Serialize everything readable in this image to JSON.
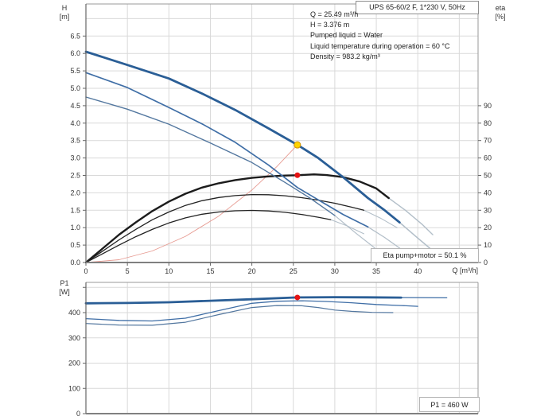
{
  "page": {
    "background": "#ffffff"
  },
  "labels": {
    "h_axis_line1": "H",
    "h_axis_line2": "[m]",
    "eta_axis_line1": "eta",
    "eta_axis_line2": "[%]",
    "p1_axis_line1": "P1",
    "p1_axis_line2": "[W]"
  },
  "chart_data": [
    {
      "type": "line",
      "title": "UPS 65-60/2 F, 1*230 V, 50Hz",
      "x_axis": {
        "label": "Q [m³/h]",
        "min": 0,
        "max": 47.3,
        "ticks": [
          0,
          5,
          10,
          15,
          20,
          25,
          30,
          35,
          40
        ],
        "grid": [
          5,
          10,
          15,
          20,
          25,
          30,
          35,
          40,
          45
        ]
      },
      "y_left": {
        "label": "H [m]",
        "min": 0,
        "max": 7.4,
        "ticks": [
          0.0,
          0.5,
          1.0,
          1.5,
          2.0,
          2.5,
          3.0,
          3.5,
          4.0,
          4.5,
          5.0,
          5.5,
          6.0,
          6.5
        ]
      },
      "y_right": {
        "label": "eta [%]",
        "min": 0,
        "max": 148,
        "ticks": [
          0,
          10,
          20,
          30,
          40,
          50,
          60,
          70,
          80,
          90
        ]
      },
      "annotations": [
        "Q = 25.49 m³/h",
        "H = 3.376 m",
        "Pumped liquid = Water",
        "Liquid temperature during operation = 60 °C",
        "Density = 983.2 kg/m³"
      ],
      "point_label": "Eta pump+motor = 50.1 %",
      "operating_point": {
        "q": 25.49,
        "h": 3.376,
        "eta_pct": 50.1
      },
      "series": [
        {
          "name": "system-curve",
          "axis": "H",
          "color": "#e79b92",
          "width": 0.9,
          "points": [
            [
              0,
              0
            ],
            [
              4,
              0.08
            ],
            [
              8,
              0.33
            ],
            [
              12,
              0.75
            ],
            [
              16,
              1.33
            ],
            [
              20,
              2.08
            ],
            [
              23,
              2.75
            ],
            [
              25.49,
              3.376
            ]
          ]
        },
        {
          "name": "qh-speed3-extension",
          "axis": "H",
          "color": "#b3bfc9",
          "width": 1.6,
          "points": [
            [
              37.8,
              1.15
            ],
            [
              40,
              0.7
            ],
            [
              42,
              0.3
            ]
          ]
        },
        {
          "name": "qh-speed2-extension",
          "axis": "H",
          "color": "#b3bfc9",
          "width": 1.3,
          "points": [
            [
              34,
              1.02
            ],
            [
              36,
              0.72
            ],
            [
              38.3,
              0.33
            ]
          ]
        },
        {
          "name": "qh-speed1-extension",
          "axis": "H",
          "color": "#b3bfc9",
          "width": 1.2,
          "points": [
            [
              30,
              1.35
            ],
            [
              32.5,
              0.85
            ],
            [
              34.8,
              0.42
            ]
          ]
        },
        {
          "name": "eta-speed3-extension",
          "axis": "eta",
          "color": "#b3bfc9",
          "width": 1.4,
          "points": [
            [
              36.5,
              37
            ],
            [
              38.5,
              30
            ],
            [
              40.5,
              22
            ],
            [
              41.8,
              16
            ]
          ]
        },
        {
          "name": "eta-speed2-extension",
          "axis": "eta",
          "color": "#b3bfc9",
          "width": 1.1,
          "points": [
            [
              33.5,
              30
            ],
            [
              35.5,
              25.5
            ],
            [
              37.5,
              20
            ]
          ]
        },
        {
          "name": "eta-speed1-extension",
          "axis": "eta",
          "color": "#b3bfc9",
          "width": 1.1,
          "points": [
            [
              29.5,
              24.6
            ],
            [
              31.5,
              21
            ],
            [
              33.5,
              16.5
            ]
          ]
        },
        {
          "name": "eta-pump-motor-speed3",
          "axis": "eta",
          "color": "#1c1c1c",
          "width": 2.4,
          "points": [
            [
              0,
              0
            ],
            [
              2,
              8
            ],
            [
              4,
              16
            ],
            [
              6,
              23
            ],
            [
              8,
              29.5
            ],
            [
              10,
              35
            ],
            [
              12,
              39.5
            ],
            [
              14,
              43
            ],
            [
              16,
              45.5
            ],
            [
              18,
              47.3
            ],
            [
              20,
              48.6
            ],
            [
              22,
              49.4
            ],
            [
              24,
              49.9
            ],
            [
              25.49,
              50.1
            ],
            [
              27.5,
              50.6
            ],
            [
              29,
              50.2
            ],
            [
              31,
              49
            ],
            [
              33,
              46.5
            ],
            [
              35,
              42.5
            ],
            [
              36.5,
              37
            ]
          ]
        },
        {
          "name": "eta-pump-motor-speed2",
          "axis": "eta",
          "color": "#222222",
          "width": 1.3,
          "points": [
            [
              0,
              0
            ],
            [
              2,
              6.5
            ],
            [
              4,
              13
            ],
            [
              6,
              19
            ],
            [
              8,
              24.5
            ],
            [
              10,
              29
            ],
            [
              12,
              32.8
            ],
            [
              14,
              35.5
            ],
            [
              16,
              37.3
            ],
            [
              18,
              38.4
            ],
            [
              20,
              39
            ],
            [
              22,
              38.9
            ],
            [
              24,
              38.3
            ],
            [
              26,
              37.2
            ],
            [
              28,
              35.8
            ],
            [
              30,
              34
            ],
            [
              32,
              31.8
            ],
            [
              33.5,
              30
            ]
          ]
        },
        {
          "name": "eta-pump-motor-speed1",
          "axis": "eta",
          "color": "#222222",
          "width": 1.3,
          "points": [
            [
              0,
              0
            ],
            [
              2,
              5
            ],
            [
              4,
              10
            ],
            [
              6,
              14.8
            ],
            [
              8,
              19
            ],
            [
              10,
              22.7
            ],
            [
              12,
              25.6
            ],
            [
              14,
              27.7
            ],
            [
              16,
              29
            ],
            [
              18,
              29.7
            ],
            [
              20,
              29.9
            ],
            [
              22,
              29.6
            ],
            [
              24,
              28.8
            ],
            [
              26,
              27.6
            ],
            [
              28,
              26
            ],
            [
              29.5,
              24.6
            ]
          ]
        },
        {
          "name": "qh-speed1",
          "axis": "H",
          "color": "#53779f",
          "width": 1.4,
          "points": [
            [
              0,
              4.75
            ],
            [
              5,
              4.4
            ],
            [
              10,
              3.97
            ],
            [
              15,
              3.43
            ],
            [
              20,
              2.87
            ],
            [
              24,
              2.3
            ],
            [
              27,
              1.85
            ],
            [
              30,
              1.35
            ]
          ]
        },
        {
          "name": "qh-speed2",
          "axis": "H",
          "color": "#3f6ea6",
          "width": 1.7,
          "points": [
            [
              0,
              5.45
            ],
            [
              5,
              5.02
            ],
            [
              10,
              4.45
            ],
            [
              14,
              3.98
            ],
            [
              18,
              3.45
            ],
            [
              22,
              2.8
            ],
            [
              25.5,
              2.15
            ],
            [
              28,
              1.8
            ],
            [
              31,
              1.38
            ],
            [
              34,
              1.02
            ]
          ]
        },
        {
          "name": "qh-speed3",
          "axis": "H",
          "color": "#2a5e96",
          "width": 2.8,
          "points": [
            [
              0,
              6.05
            ],
            [
              5,
              5.67
            ],
            [
              10,
              5.28
            ],
            [
              14,
              4.85
            ],
            [
              18,
              4.38
            ],
            [
              22,
              3.85
            ],
            [
              25.49,
              3.376
            ],
            [
              28,
              3.0
            ],
            [
              31,
              2.45
            ],
            [
              34,
              1.85
            ],
            [
              36,
              1.5
            ],
            [
              37.8,
              1.15
            ]
          ]
        }
      ],
      "markers": [
        {
          "name": "duty-point-qh",
          "q": 25.49,
          "value": 3.376,
          "axis": "H",
          "fill": "#ffd400",
          "stroke": "#d09000",
          "r": 4
        },
        {
          "name": "duty-point-eta",
          "q": 25.49,
          "value": 50.1,
          "axis": "eta",
          "fill": "#e51414",
          "stroke": "none",
          "r": 3.5
        }
      ]
    },
    {
      "type": "line",
      "y_left": {
        "label": "P1 [W]",
        "min": 0,
        "max": 520,
        "ticks": [
          0,
          100,
          200,
          300,
          400
        ],
        "grid": [
          100,
          200,
          300,
          400,
          500
        ]
      },
      "x_grid": [
        5,
        10,
        15,
        20,
        25,
        30,
        35,
        40,
        45
      ],
      "point_label": "P1 = 460 W",
      "operating_point": {
        "q": 25.49,
        "p1_w": 460
      },
      "series": [
        {
          "name": "p1-speed3-extension",
          "axis": "P",
          "color": "#3f6ea6",
          "width": 1.2,
          "points": [
            [
              38,
              459.5
            ],
            [
              43.5,
              458.5
            ]
          ]
        },
        {
          "name": "p1-speed1",
          "axis": "P",
          "color": "#53779f",
          "width": 1.2,
          "points": [
            [
              0,
              357
            ],
            [
              4,
              351
            ],
            [
              8,
              350
            ],
            [
              12,
              362
            ],
            [
              16,
              392
            ],
            [
              20,
              420
            ],
            [
              23,
              428
            ],
            [
              26,
              427
            ],
            [
              28,
              420
            ],
            [
              30,
              410
            ],
            [
              32,
              405
            ],
            [
              34.5,
              401
            ],
            [
              37,
              400
            ]
          ]
        },
        {
          "name": "p1-speed2",
          "axis": "P",
          "color": "#3f6ea6",
          "width": 1.3,
          "points": [
            [
              0,
              376
            ],
            [
              4,
              369
            ],
            [
              8,
              367
            ],
            [
              12,
              378
            ],
            [
              16,
              408
            ],
            [
              20,
              437
            ],
            [
              23,
              445
            ],
            [
              26,
              447
            ],
            [
              29,
              444
            ],
            [
              32,
              439
            ],
            [
              35,
              432
            ],
            [
              38,
              428
            ],
            [
              40,
              425
            ]
          ]
        },
        {
          "name": "p1-speed3",
          "axis": "P",
          "color": "#2a5e96",
          "width": 2.8,
          "points": [
            [
              0,
              437
            ],
            [
              5,
              438
            ],
            [
              10,
              441
            ],
            [
              15,
              447
            ],
            [
              20,
              453
            ],
            [
              25.49,
              460
            ],
            [
              30,
              461
            ],
            [
              34,
              460.5
            ],
            [
              38,
              459.5
            ]
          ]
        }
      ],
      "markers": [
        {
          "name": "duty-point-p1",
          "q": 25.49,
          "value": 460,
          "axis": "P",
          "fill": "#e51414",
          "stroke": "none",
          "r": 3.5
        }
      ]
    }
  ],
  "colors": {
    "grid": "#d9d9d9",
    "frame": "#999999",
    "axis_dark": "#666666",
    "axis_bottom": "#808080",
    "tick_text": "#333333"
  }
}
